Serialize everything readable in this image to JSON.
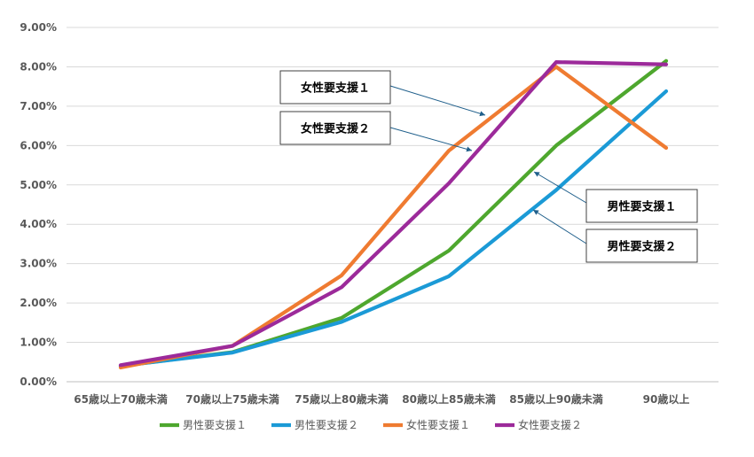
{
  "chart_data": {
    "type": "line",
    "title": "",
    "xlabel": "",
    "ylabel": "",
    "categories": [
      "65歳以上70歳未満",
      "70歳以上75歳未満",
      "75歳以上80歳未満",
      "80歳以上85歳未満",
      "85歳以上90歳未満",
      "90歳以上"
    ],
    "ylim": [
      0,
      9
    ],
    "yticks": [
      "0.00%",
      "1.00%",
      "2.00%",
      "3.00%",
      "4.00%",
      "5.00%",
      "6.00%",
      "7.00%",
      "8.00%",
      "9.00%"
    ],
    "grid": "horizontal",
    "legend_position": "bottom",
    "series": [
      {
        "name": "男性要支援１",
        "color": "#4ea72e",
        "values": [
          0.4,
          0.75,
          1.62,
          3.33,
          6.0,
          8.15
        ]
      },
      {
        "name": "男性要支援２",
        "color": "#1b9ad6",
        "values": [
          0.4,
          0.74,
          1.52,
          2.68,
          4.87,
          7.38
        ]
      },
      {
        "name": "女性要支援１",
        "color": "#ef7b31",
        "values": [
          0.36,
          0.91,
          2.7,
          5.87,
          8.0,
          5.94
        ]
      },
      {
        "name": "女性要支援２",
        "color": "#9c2a9a",
        "values": [
          0.42,
          0.91,
          2.4,
          5.04,
          8.12,
          8.06
        ]
      }
    ],
    "annotations": [
      {
        "text": "女性要支援１",
        "series": "女性要支援１"
      },
      {
        "text": "女性要支援２",
        "series": "女性要支援２"
      },
      {
        "text": "男性要支援１",
        "series": "男性要支援１"
      },
      {
        "text": "男性要支援２",
        "series": "男性要支援２"
      }
    ]
  }
}
